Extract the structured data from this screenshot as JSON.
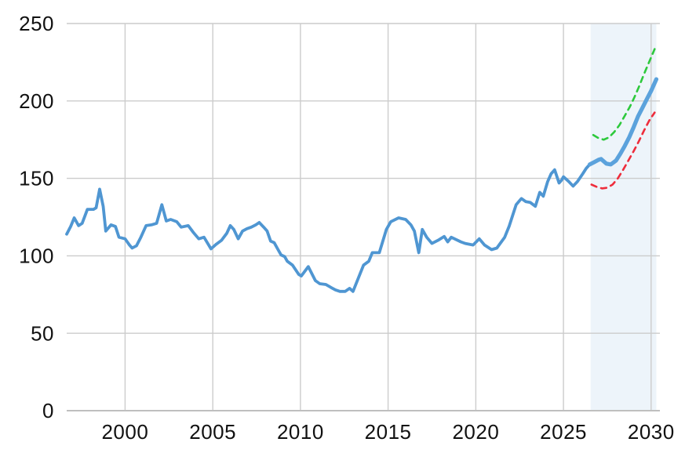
{
  "chart_data": {
    "type": "line",
    "title": "",
    "x_axis": {
      "label": "",
      "ticks": [
        "2000",
        "2005",
        "2010",
        "2015",
        "2020",
        "2025",
        "2030"
      ],
      "tick_values": [
        2000,
        2005,
        2010,
        2015,
        2020,
        2025,
        2030
      ],
      "range": [
        1996.67,
        2030.5
      ]
    },
    "y_axis": {
      "label": "",
      "ticks": [
        "0",
        "50",
        "100",
        "150",
        "200",
        "250"
      ],
      "tick_values": [
        0,
        50,
        100,
        150,
        200,
        250
      ],
      "range": [
        0,
        250
      ]
    },
    "grid": true,
    "legend": "none",
    "forecast_band": {
      "x_start": 2026.55,
      "x_end": 2030.3
    },
    "series": [
      {
        "name": "historical",
        "style": "solid",
        "color": "#4f96d2",
        "stroke_width": 3.8,
        "points": [
          [
            1996.67,
            114
          ],
          [
            1996.9,
            119
          ],
          [
            1997.1,
            124.5
          ],
          [
            1997.35,
            119.5
          ],
          [
            1997.55,
            121
          ],
          [
            1997.85,
            130
          ],
          [
            1998.2,
            130
          ],
          [
            1998.35,
            131
          ],
          [
            1998.55,
            143
          ],
          [
            1998.75,
            132
          ],
          [
            1998.9,
            116
          ],
          [
            1999.2,
            120
          ],
          [
            1999.45,
            119
          ],
          [
            1999.65,
            112
          ],
          [
            2000.0,
            111
          ],
          [
            2000.25,
            107
          ],
          [
            2000.4,
            105
          ],
          [
            2000.65,
            106.5
          ],
          [
            2000.9,
            112
          ],
          [
            2001.2,
            119.5
          ],
          [
            2001.5,
            120
          ],
          [
            2001.8,
            121
          ],
          [
            2002.1,
            133
          ],
          [
            2002.35,
            122.5
          ],
          [
            2002.6,
            123.5
          ],
          [
            2002.95,
            122
          ],
          [
            2003.2,
            118.5
          ],
          [
            2003.6,
            119.5
          ],
          [
            2003.9,
            115
          ],
          [
            2004.2,
            111
          ],
          [
            2004.5,
            112
          ],
          [
            2004.9,
            104.5
          ],
          [
            2005.2,
            107.5
          ],
          [
            2005.5,
            110
          ],
          [
            2005.8,
            114.5
          ],
          [
            2006.0,
            119.5
          ],
          [
            2006.2,
            117
          ],
          [
            2006.45,
            111
          ],
          [
            2006.7,
            116
          ],
          [
            2006.95,
            117.5
          ],
          [
            2007.2,
            118.5
          ],
          [
            2007.45,
            120
          ],
          [
            2007.65,
            121.5
          ],
          [
            2007.9,
            118.5
          ],
          [
            2008.1,
            116
          ],
          [
            2008.3,
            109.5
          ],
          [
            2008.5,
            108.5
          ],
          [
            2008.7,
            104.5
          ],
          [
            2008.9,
            100.5
          ],
          [
            2009.1,
            99.5
          ],
          [
            2009.25,
            96.5
          ],
          [
            2009.55,
            94
          ],
          [
            2009.9,
            88
          ],
          [
            2010.05,
            87
          ],
          [
            2010.45,
            93
          ],
          [
            2010.85,
            84
          ],
          [
            2011.1,
            82
          ],
          [
            2011.45,
            81.5
          ],
          [
            2011.75,
            79.5
          ],
          [
            2012.0,
            78
          ],
          [
            2012.25,
            77
          ],
          [
            2012.55,
            77
          ],
          [
            2012.8,
            79
          ],
          [
            2013.0,
            77
          ],
          [
            2013.3,
            85.5
          ],
          [
            2013.6,
            94
          ],
          [
            2013.9,
            96.5
          ],
          [
            2014.1,
            102
          ],
          [
            2014.5,
            102
          ],
          [
            2014.9,
            117
          ],
          [
            2015.15,
            122
          ],
          [
            2015.6,
            124.5
          ],
          [
            2016.0,
            123.5
          ],
          [
            2016.3,
            120
          ],
          [
            2016.5,
            116
          ],
          [
            2016.75,
            102
          ],
          [
            2016.95,
            117
          ],
          [
            2017.2,
            112
          ],
          [
            2017.5,
            108
          ],
          [
            2017.85,
            110
          ],
          [
            2018.2,
            112.5
          ],
          [
            2018.4,
            109
          ],
          [
            2018.6,
            112
          ],
          [
            2019.15,
            109
          ],
          [
            2019.4,
            108
          ],
          [
            2019.85,
            107
          ],
          [
            2020.2,
            111
          ],
          [
            2020.5,
            107
          ],
          [
            2020.9,
            104
          ],
          [
            2021.2,
            105
          ],
          [
            2021.65,
            112
          ],
          [
            2021.9,
            119
          ],
          [
            2022.1,
            126
          ],
          [
            2022.3,
            133
          ],
          [
            2022.6,
            137
          ],
          [
            2022.85,
            135
          ],
          [
            2023.1,
            134.5
          ],
          [
            2023.4,
            132
          ],
          [
            2023.65,
            141
          ],
          [
            2023.85,
            138.5
          ],
          [
            2024.1,
            148
          ],
          [
            2024.3,
            153
          ],
          [
            2024.5,
            155.5
          ],
          [
            2024.75,
            147
          ],
          [
            2024.9,
            149
          ],
          [
            2025.0,
            151
          ],
          [
            2025.3,
            148
          ],
          [
            2025.55,
            145
          ],
          [
            2025.8,
            148
          ],
          [
            2026.1,
            153
          ],
          [
            2026.3,
            156.5
          ],
          [
            2026.5,
            159
          ]
        ]
      },
      {
        "name": "forecast-mid",
        "style": "solid",
        "color": "#5ba2dc",
        "stroke_width": 5.2,
        "points": [
          [
            2026.5,
            159
          ],
          [
            2026.75,
            160.5
          ],
          [
            2027.0,
            162
          ],
          [
            2027.15,
            162.5
          ],
          [
            2027.45,
            159.5
          ],
          [
            2027.7,
            159
          ],
          [
            2028.0,
            161.5
          ],
          [
            2028.25,
            166
          ],
          [
            2028.5,
            171
          ],
          [
            2028.75,
            176.5
          ],
          [
            2029.0,
            183
          ],
          [
            2029.25,
            190
          ],
          [
            2029.5,
            195.5
          ],
          [
            2029.75,
            201
          ],
          [
            2030.0,
            206.5
          ],
          [
            2030.3,
            214
          ]
        ]
      },
      {
        "name": "forecast-upper",
        "style": "dashed",
        "color": "#2dc93c",
        "stroke_width": 2.6,
        "points": [
          [
            2026.7,
            178
          ],
          [
            2027.0,
            176
          ],
          [
            2027.3,
            175
          ],
          [
            2027.6,
            176.5
          ],
          [
            2027.9,
            180
          ],
          [
            2028.2,
            184.5
          ],
          [
            2028.5,
            190.5
          ],
          [
            2028.8,
            196.5
          ],
          [
            2029.05,
            202.5
          ],
          [
            2029.3,
            209
          ],
          [
            2029.6,
            217.5
          ],
          [
            2029.9,
            225.5
          ],
          [
            2030.2,
            233.5
          ]
        ]
      },
      {
        "name": "forecast-lower",
        "style": "dashed",
        "color": "#ee2d3c",
        "stroke_width": 2.6,
        "points": [
          [
            2026.6,
            146
          ],
          [
            2026.9,
            144.5
          ],
          [
            2027.2,
            143.5
          ],
          [
            2027.5,
            144
          ],
          [
            2027.8,
            146
          ],
          [
            2028.1,
            150
          ],
          [
            2028.4,
            155.5
          ],
          [
            2028.7,
            161.5
          ],
          [
            2029.0,
            167.5
          ],
          [
            2029.3,
            174
          ],
          [
            2029.6,
            181
          ],
          [
            2029.9,
            187.5
          ],
          [
            2030.2,
            192.5
          ]
        ]
      }
    ],
    "colors": {
      "background": "#ffffff",
      "grid": "#cccccc",
      "axis": "#bfbfbf",
      "tick_text": "#111111",
      "forecast_band": "#edf4fa"
    },
    "tick_font_size": 26
  }
}
